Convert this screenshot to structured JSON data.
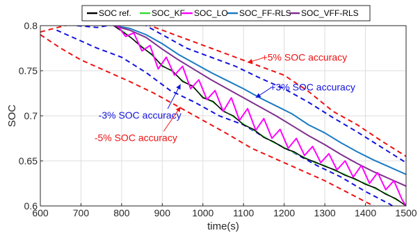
{
  "colors": {
    "soc_ref": "#000000",
    "soc_kf": "#33dd33",
    "soc_lo": "#ff00ff",
    "soc_ff_rls": "#1a7ac4",
    "soc_vff_rls": "#7e2f8e",
    "bound_5": "#ee1111",
    "bound_3": "#1111dd",
    "grid": "#dcdcdc"
  },
  "chart_data": {
    "type": "line",
    "xlabel": "time(s)",
    "ylabel": "SOC",
    "xlim": [
      600,
      1500
    ],
    "ylim": [
      0.6,
      0.8
    ],
    "xticks": [
      600,
      700,
      800,
      900,
      1000,
      1100,
      1200,
      1300,
      1400,
      1500
    ],
    "yticks": [
      0.6,
      0.65,
      0.7,
      0.75,
      0.8
    ],
    "ytick_labels": [
      "0.6",
      "0.65",
      "0.7",
      "0.75",
      "0.8"
    ],
    "grid": true,
    "legend_position": "top",
    "series": [
      {
        "name": "SOC ref.",
        "x": [
          780,
          800,
          825,
          850,
          875,
          900,
          925,
          950,
          975,
          1000,
          1025,
          1050,
          1075,
          1100,
          1125,
          1150,
          1175,
          1200,
          1225,
          1250,
          1275,
          1300,
          1325,
          1350,
          1375,
          1400,
          1425,
          1450,
          1475,
          1500
        ],
        "y": [
          0.8,
          0.794,
          0.786,
          0.776,
          0.768,
          0.755,
          0.75,
          0.738,
          0.733,
          0.72,
          0.716,
          0.705,
          0.7,
          0.69,
          0.685,
          0.676,
          0.671,
          0.664,
          0.66,
          0.653,
          0.649,
          0.644,
          0.64,
          0.634,
          0.63,
          0.624,
          0.62,
          0.613,
          0.608,
          0.6
        ]
      },
      {
        "name": "SOC_KF",
        "x": [
          780,
          800,
          825,
          850,
          875,
          900,
          925,
          950,
          975,
          1000,
          1025,
          1050,
          1075,
          1100,
          1125,
          1150,
          1175,
          1200,
          1225,
          1250,
          1275,
          1300,
          1325,
          1350,
          1375,
          1400,
          1425,
          1450,
          1475,
          1500
        ],
        "y": [
          0.8,
          0.795,
          0.786,
          0.777,
          0.767,
          0.756,
          0.749,
          0.739,
          0.732,
          0.721,
          0.715,
          0.706,
          0.699,
          0.691,
          0.684,
          0.677,
          0.67,
          0.665,
          0.659,
          0.654,
          0.648,
          0.645,
          0.639,
          0.635,
          0.629,
          0.625,
          0.619,
          0.614,
          0.607,
          0.601
        ]
      },
      {
        "name": "SOC_LO",
        "x": [
          790,
          810,
          830,
          850,
          870,
          890,
          910,
          930,
          950,
          970,
          990,
          1010,
          1030,
          1050,
          1070,
          1090,
          1110,
          1130,
          1150,
          1170,
          1190,
          1210,
          1230,
          1250,
          1270,
          1290,
          1310,
          1330,
          1350,
          1370,
          1390,
          1410,
          1430,
          1450,
          1470,
          1490,
          1500
        ],
        "y": [
          0.8,
          0.788,
          0.792,
          0.772,
          0.778,
          0.752,
          0.765,
          0.745,
          0.755,
          0.73,
          0.74,
          0.718,
          0.728,
          0.705,
          0.72,
          0.695,
          0.708,
          0.684,
          0.697,
          0.675,
          0.685,
          0.664,
          0.675,
          0.656,
          0.666,
          0.648,
          0.658,
          0.64,
          0.65,
          0.632,
          0.645,
          0.625,
          0.637,
          0.618,
          0.628,
          0.607,
          0.6
        ]
      },
      {
        "name": "SOC_FF-RLS",
        "x": [
          780,
          820,
          860,
          900,
          940,
          980,
          1020,
          1060,
          1100,
          1140,
          1180,
          1220,
          1260,
          1300,
          1340,
          1380,
          1420,
          1460,
          1500
        ],
        "y": [
          0.8,
          0.797,
          0.79,
          0.78,
          0.768,
          0.758,
          0.748,
          0.739,
          0.73,
          0.72,
          0.711,
          0.702,
          0.69,
          0.681,
          0.67,
          0.66,
          0.651,
          0.643,
          0.635
        ]
      },
      {
        "name": "SOC_VFF-RLS",
        "x": [
          780,
          820,
          860,
          900,
          940,
          980,
          1020,
          1060,
          1100,
          1140,
          1180,
          1220,
          1260,
          1300,
          1340,
          1380,
          1420,
          1460,
          1500
        ],
        "y": [
          0.8,
          0.795,
          0.787,
          0.774,
          0.762,
          0.751,
          0.74,
          0.73,
          0.72,
          0.71,
          0.7,
          0.689,
          0.678,
          0.668,
          0.657,
          0.647,
          0.638,
          0.63,
          0.622
        ]
      }
    ],
    "bounds": [
      {
        "label": "+5% SOC accuracy",
        "x": [
          600,
          660,
          720,
          780,
          840,
          900,
          960,
          1020,
          1080,
          1140,
          1200,
          1260,
          1320,
          1380,
          1440,
          1500
        ],
        "y": [
          0.793,
          0.8,
          0.805,
          0.81,
          0.805,
          0.795,
          0.785,
          0.775,
          0.765,
          0.755,
          0.745,
          0.727,
          0.705,
          0.69,
          0.672,
          0.655
        ]
      },
      {
        "label": "+3% SOC accuracy",
        "x": [
          690,
          740,
          790,
          840,
          900,
          960,
          1020,
          1080,
          1140,
          1200,
          1260,
          1320,
          1380,
          1440,
          1500
        ],
        "y": [
          0.8,
          0.798,
          0.802,
          0.805,
          0.79,
          0.775,
          0.765,
          0.755,
          0.742,
          0.73,
          0.715,
          0.698,
          0.682,
          0.665,
          0.648
        ]
      },
      {
        "label": "-3% SOC accuracy",
        "x": [
          640,
          690,
          740,
          800,
          860,
          920,
          980,
          1040,
          1100,
          1160,
          1220,
          1280,
          1340,
          1400,
          1460,
          1500
        ],
        "y": [
          0.795,
          0.785,
          0.775,
          0.765,
          0.748,
          0.728,
          0.715,
          0.7,
          0.69,
          0.674,
          0.66,
          0.645,
          0.632,
          0.616,
          0.602,
          0.59
        ]
      },
      {
        "label": "-5% SOC accuracy",
        "x": [
          600,
          650,
          700,
          760,
          820,
          880,
          940,
          1000,
          1060,
          1120,
          1180,
          1240,
          1300,
          1360,
          1420,
          1480,
          1500
        ],
        "y": [
          0.79,
          0.775,
          0.762,
          0.75,
          0.738,
          0.725,
          0.71,
          0.695,
          0.68,
          0.664,
          0.652,
          0.64,
          0.628,
          0.614,
          0.6,
          0.588,
          0.585
        ]
      }
    ],
    "annotations": [
      {
        "text": "+5% SOC accuracy",
        "color": "#ee1111",
        "tx": 1250,
        "ty": 0.761,
        "ax": 1110,
        "ay": 0.759
      },
      {
        "text": "+3% SOC accuracy",
        "color": "#1111dd",
        "tx": 1270,
        "ty": 0.728,
        "ax": 1130,
        "ay": 0.72
      },
      {
        "text": "-3% SOC accuracy",
        "color": "#1111dd",
        "tx": 845,
        "ty": 0.697,
        "ax": 945,
        "ay": 0.735
      },
      {
        "text": "-5% SOC accuracy",
        "color": "#ee1111",
        "tx": 835,
        "ty": 0.672,
        "ax": 945,
        "ay": 0.71
      }
    ]
  }
}
